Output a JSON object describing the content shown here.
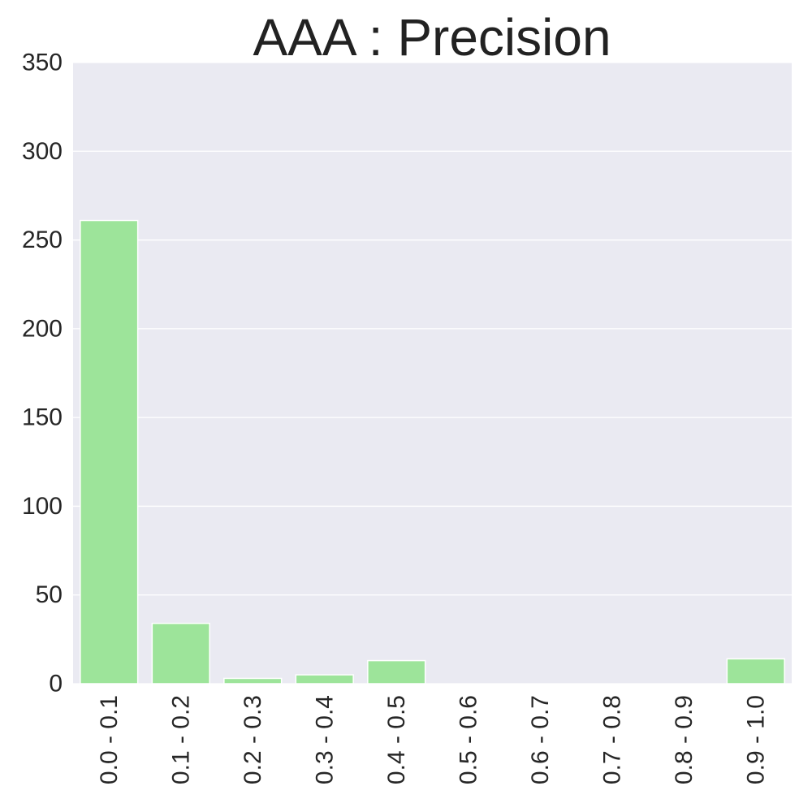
{
  "chart_data": {
    "type": "bar",
    "title": "AAA : Precision",
    "xlabel": "",
    "ylabel": "",
    "categories": [
      "0.0 - 0.1",
      "0.1 - 0.2",
      "0.2 - 0.3",
      "0.3 - 0.4",
      "0.4 - 0.5",
      "0.5 - 0.6",
      "0.6 - 0.7",
      "0.7 - 0.8",
      "0.8 - 0.9",
      "0.9 - 1.0"
    ],
    "values": [
      261,
      34,
      3,
      5,
      13,
      0,
      0,
      0,
      0,
      14
    ],
    "ylim": [
      0,
      350
    ],
    "yticks": [
      0,
      50,
      100,
      150,
      200,
      250,
      300,
      350
    ],
    "grid": true,
    "legend": "none",
    "colors": {
      "bar": "#9de49a",
      "bar_edge": "#ffffff",
      "plot_background": "#eaeaf2",
      "grid": "#ffffff",
      "text": "#262626"
    }
  }
}
